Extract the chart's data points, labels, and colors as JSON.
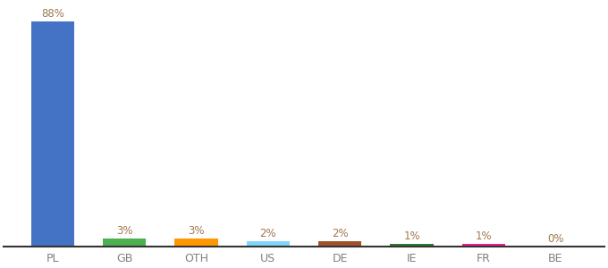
{
  "categories": [
    "PL",
    "GB",
    "OTH",
    "US",
    "DE",
    "IE",
    "FR",
    "BE"
  ],
  "values": [
    88,
    3,
    3,
    2,
    2,
    1,
    1,
    0
  ],
  "labels": [
    "88%",
    "3%",
    "3%",
    "2%",
    "2%",
    "1%",
    "1%",
    "0%"
  ],
  "bar_colors": [
    "#4472c4",
    "#4caf50",
    "#ff9800",
    "#81d4fa",
    "#a0522d",
    "#2e7d32",
    "#e91e8c",
    "#9e9e9e"
  ],
  "background_color": "#ffffff",
  "label_color": "#a07850",
  "xlabel_color": "#808080",
  "ylim": [
    0,
    95
  ],
  "bar_width": 0.6
}
